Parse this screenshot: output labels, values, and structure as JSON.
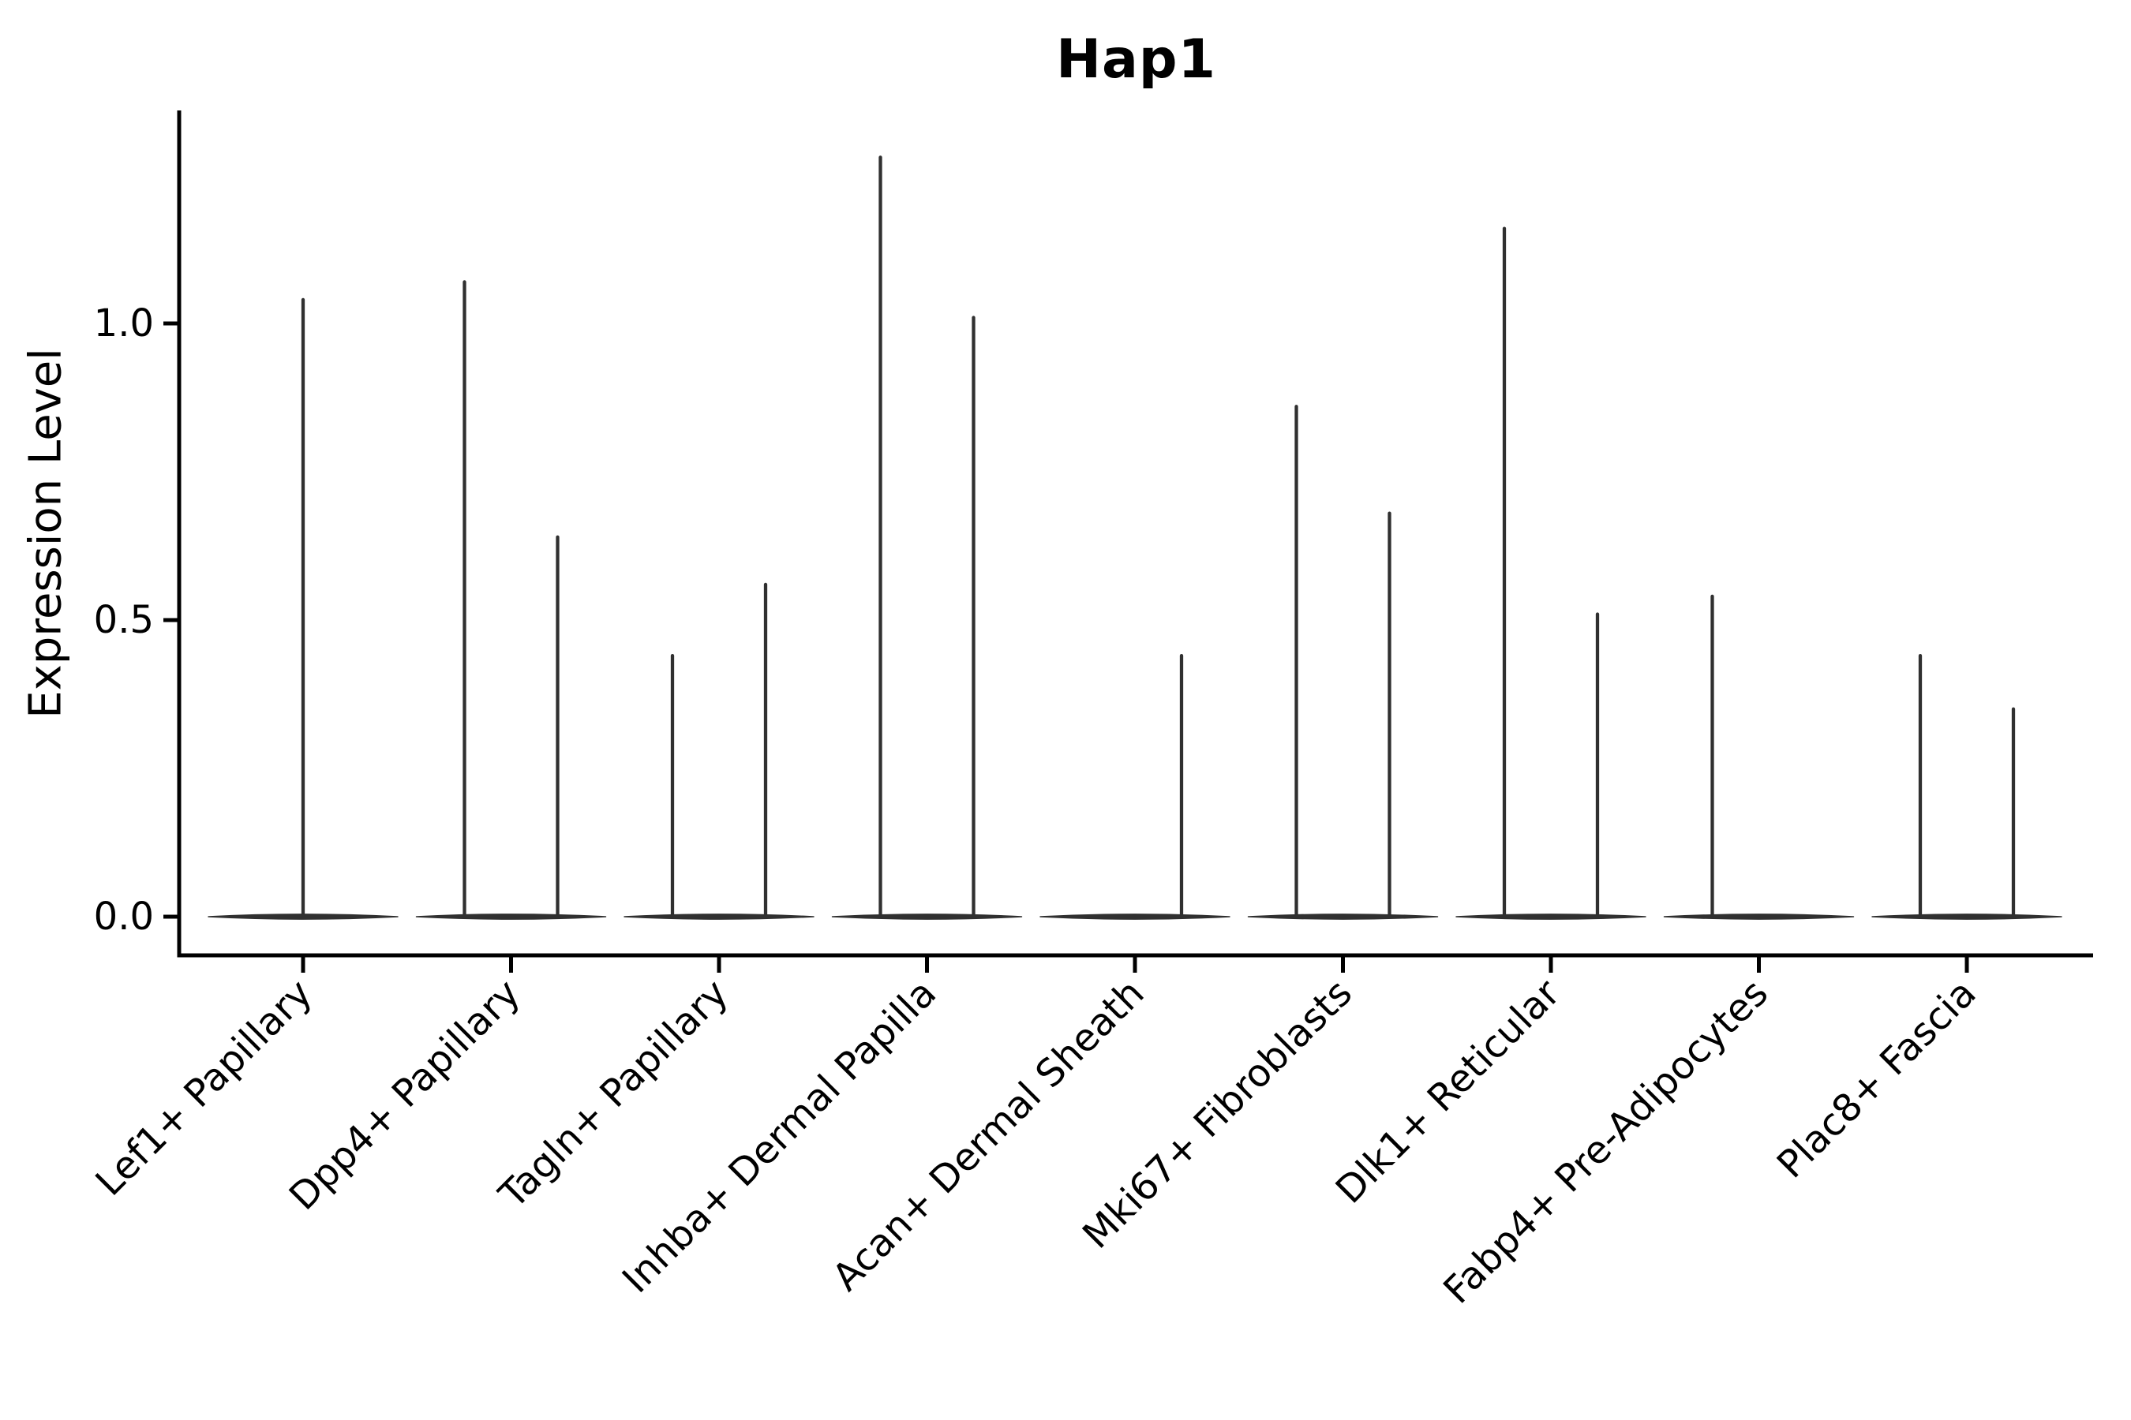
{
  "chart_data": {
    "type": "violin",
    "title": "Hap1",
    "ylabel": "Expression Level",
    "xlabel": "",
    "y_ticks": [
      {
        "value": 0.0,
        "label": "0.0"
      },
      {
        "value": 0.5,
        "label": "0.5"
      },
      {
        "value": 1.0,
        "label": "1.0"
      }
    ],
    "ylim": [
      -0.07,
      1.36
    ],
    "grid": false,
    "legend_position": "none",
    "colors": {
      "violin": "#303030",
      "axis": "#000000",
      "text": "#000000",
      "background": "#ffffff"
    },
    "description": "Violin plot of Hap1 expression per cluster; each violin collapses to a flat base at 0 with thin density spikes reaching the maximum expression of rare positive cells.",
    "categories": [
      {
        "label": "Lef1+ Papillary",
        "spikes": [
          {
            "position": "center",
            "max_expression": 1.04
          }
        ]
      },
      {
        "label": "Dpp4+ Papillary",
        "spikes": [
          {
            "position": "left",
            "max_expression": 1.07
          },
          {
            "position": "right",
            "max_expression": 0.64
          }
        ]
      },
      {
        "label": "Tagln+ Papillary",
        "spikes": [
          {
            "position": "left",
            "max_expression": 0.44
          },
          {
            "position": "right",
            "max_expression": 0.56
          }
        ]
      },
      {
        "label": "Inhba+ Dermal Papilla",
        "spikes": [
          {
            "position": "left",
            "max_expression": 1.28
          },
          {
            "position": "right",
            "max_expression": 1.01
          }
        ]
      },
      {
        "label": "Acan+ Dermal Sheath",
        "spikes": [
          {
            "position": "right",
            "max_expression": 0.44
          }
        ]
      },
      {
        "label": "Mki67+ Fibroblasts",
        "spikes": [
          {
            "position": "left",
            "max_expression": 0.86
          },
          {
            "position": "right",
            "max_expression": 0.68
          }
        ]
      },
      {
        "label": "Dlk1+ Reticular",
        "spikes": [
          {
            "position": "left",
            "max_expression": 1.16
          },
          {
            "position": "right",
            "max_expression": 0.51
          }
        ]
      },
      {
        "label": "Fabp4+ Pre-Adipocytes",
        "spikes": [
          {
            "position": "left",
            "max_expression": 0.54
          }
        ]
      },
      {
        "label": "Plac8+ Fascia",
        "spikes": [
          {
            "position": "left",
            "max_expression": 0.44
          },
          {
            "position": "right",
            "max_expression": 0.35
          }
        ]
      }
    ]
  }
}
